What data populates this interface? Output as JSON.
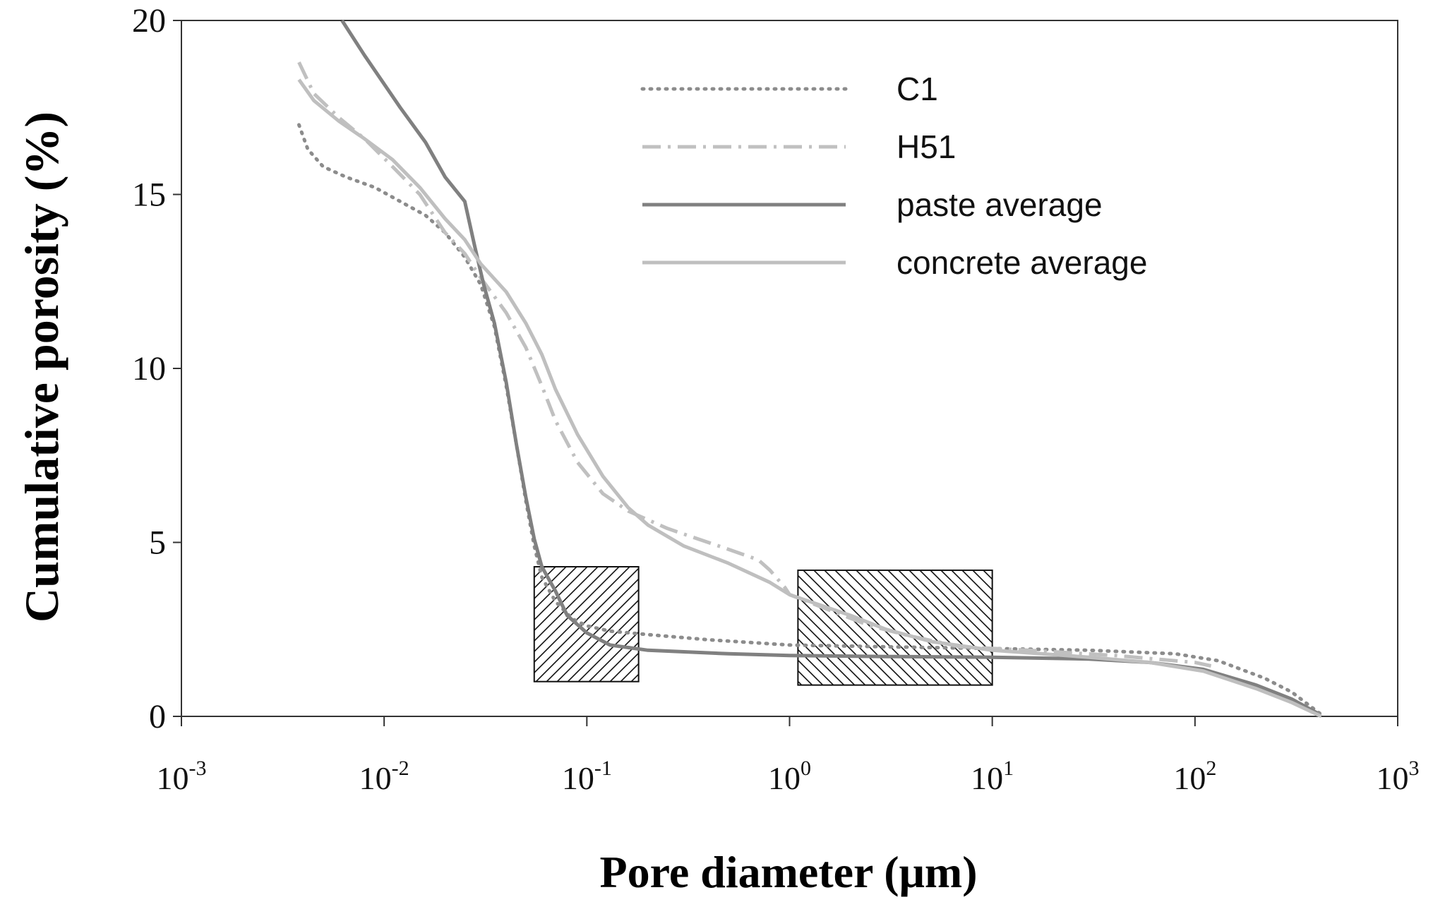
{
  "chart_data": {
    "type": "line",
    "title": "",
    "xlabel": "Pore diameter (μm)",
    "ylabel": "Cumulative porosity (%)",
    "x_scale": "log10",
    "xlim": [
      0.001,
      1000
    ],
    "ylim": [
      0,
      20
    ],
    "x_ticks": [
      {
        "value": 0.001,
        "base": "10",
        "exp": "-3"
      },
      {
        "value": 0.01,
        "base": "10",
        "exp": "-2"
      },
      {
        "value": 0.1,
        "base": "10",
        "exp": "-1"
      },
      {
        "value": 1,
        "base": "10",
        "exp": "0"
      },
      {
        "value": 10,
        "base": "10",
        "exp": "1"
      },
      {
        "value": 100,
        "base": "10",
        "exp": "2"
      },
      {
        "value": 1000,
        "base": "10",
        "exp": "3"
      }
    ],
    "y_ticks": [
      {
        "value": 0,
        "label": "0"
      },
      {
        "value": 5,
        "label": "5"
      },
      {
        "value": 10,
        "label": "10"
      },
      {
        "value": 15,
        "label": "15"
      },
      {
        "value": 20,
        "label": "20"
      }
    ],
    "grid": false,
    "legend_position": "top-right",
    "series": [
      {
        "name": "C1",
        "color": "#8c8c8c",
        "style": "dotted",
        "points": [
          [
            0.0038,
            17.0
          ],
          [
            0.0042,
            16.3
          ],
          [
            0.005,
            15.8
          ],
          [
            0.0065,
            15.5
          ],
          [
            0.009,
            15.2
          ],
          [
            0.012,
            14.8
          ],
          [
            0.016,
            14.4
          ],
          [
            0.02,
            13.9
          ],
          [
            0.025,
            13.2
          ],
          [
            0.03,
            12.4
          ],
          [
            0.035,
            11.2
          ],
          [
            0.04,
            9.5
          ],
          [
            0.045,
            7.8
          ],
          [
            0.05,
            6.2
          ],
          [
            0.055,
            4.9
          ],
          [
            0.06,
            4.0
          ],
          [
            0.07,
            3.3
          ],
          [
            0.085,
            2.8
          ],
          [
            0.1,
            2.6
          ],
          [
            0.13,
            2.45
          ],
          [
            0.2,
            2.35
          ],
          [
            0.4,
            2.2
          ],
          [
            1.0,
            2.05
          ],
          [
            3.0,
            2.0
          ],
          [
            10.0,
            1.95
          ],
          [
            30.0,
            1.9
          ],
          [
            80.0,
            1.8
          ],
          [
            130.0,
            1.6
          ],
          [
            220.0,
            1.1
          ],
          [
            300.0,
            0.7
          ],
          [
            420.0,
            0.05
          ]
        ]
      },
      {
        "name": "H51",
        "color": "#c0c0c0",
        "style": "dashdot",
        "points": [
          [
            0.0038,
            18.8
          ],
          [
            0.0045,
            17.9
          ],
          [
            0.006,
            17.2
          ],
          [
            0.008,
            16.6
          ],
          [
            0.011,
            15.8
          ],
          [
            0.015,
            15.0
          ],
          [
            0.02,
            13.9
          ],
          [
            0.025,
            13.3
          ],
          [
            0.03,
            12.6
          ],
          [
            0.04,
            11.6
          ],
          [
            0.05,
            10.6
          ],
          [
            0.06,
            9.5
          ],
          [
            0.07,
            8.5
          ],
          [
            0.09,
            7.3
          ],
          [
            0.12,
            6.4
          ],
          [
            0.16,
            5.9
          ],
          [
            0.25,
            5.4
          ],
          [
            0.5,
            4.8
          ],
          [
            0.7,
            4.5
          ],
          [
            0.8,
            4.2
          ],
          [
            0.95,
            3.7
          ],
          [
            1.0,
            3.5
          ],
          [
            1.5,
            3.1
          ],
          [
            2.5,
            2.6
          ],
          [
            4.0,
            2.3
          ],
          [
            7.0,
            2.0
          ],
          [
            15.0,
            1.9
          ],
          [
            40.0,
            1.75
          ],
          [
            100.0,
            1.55
          ],
          [
            120.0,
            1.45
          ]
        ]
      },
      {
        "name": "paste average",
        "color": "#808080",
        "style": "solid",
        "points": [
          [
            0.0062,
            20.0
          ],
          [
            0.008,
            19.0
          ],
          [
            0.012,
            17.5
          ],
          [
            0.016,
            16.5
          ],
          [
            0.02,
            15.5
          ],
          [
            0.025,
            14.8
          ],
          [
            0.028,
            13.5
          ],
          [
            0.031,
            12.4
          ],
          [
            0.035,
            11.3
          ],
          [
            0.04,
            9.6
          ],
          [
            0.045,
            7.8
          ],
          [
            0.05,
            6.3
          ],
          [
            0.055,
            5.1
          ],
          [
            0.06,
            4.3
          ],
          [
            0.07,
            3.6
          ],
          [
            0.08,
            2.9
          ],
          [
            0.1,
            2.4
          ],
          [
            0.13,
            2.05
          ],
          [
            0.2,
            1.9
          ],
          [
            0.5,
            1.8
          ],
          [
            1.0,
            1.75
          ],
          [
            3.0,
            1.72
          ],
          [
            10.0,
            1.7
          ],
          [
            30.0,
            1.65
          ],
          [
            60.0,
            1.55
          ],
          [
            110.0,
            1.35
          ],
          [
            200.0,
            0.9
          ],
          [
            300.0,
            0.5
          ],
          [
            400.0,
            0.1
          ]
        ]
      },
      {
        "name": "concrete average",
        "color": "#bfbfbf",
        "style": "solid",
        "points": [
          [
            0.0038,
            18.3
          ],
          [
            0.0045,
            17.7
          ],
          [
            0.006,
            17.1
          ],
          [
            0.008,
            16.6
          ],
          [
            0.011,
            16.0
          ],
          [
            0.015,
            15.2
          ],
          [
            0.02,
            14.3
          ],
          [
            0.025,
            13.7
          ],
          [
            0.03,
            13.0
          ],
          [
            0.04,
            12.2
          ],
          [
            0.05,
            11.3
          ],
          [
            0.06,
            10.4
          ],
          [
            0.07,
            9.4
          ],
          [
            0.09,
            8.1
          ],
          [
            0.12,
            6.9
          ],
          [
            0.16,
            6.0
          ],
          [
            0.2,
            5.5
          ],
          [
            0.3,
            4.9
          ],
          [
            0.5,
            4.4
          ],
          [
            0.8,
            3.85
          ],
          [
            1.0,
            3.5
          ],
          [
            2.0,
            2.9
          ],
          [
            3.0,
            2.5
          ],
          [
            5.0,
            2.15
          ],
          [
            10.0,
            1.9
          ],
          [
            30.0,
            1.7
          ],
          [
            60.0,
            1.55
          ],
          [
            110.0,
            1.3
          ],
          [
            200.0,
            0.8
          ],
          [
            300.0,
            0.4
          ],
          [
            420.0,
            0.0
          ]
        ]
      }
    ],
    "annotations": [
      {
        "name": "hatched-region-1",
        "x_range": [
          0.055,
          0.18
        ],
        "y_range": [
          1.0,
          4.3
        ],
        "hatch": "forward"
      },
      {
        "name": "hatched-region-2",
        "x_range": [
          1.1,
          10.0
        ],
        "y_range": [
          0.9,
          4.2
        ],
        "hatch": "backward"
      }
    ]
  }
}
